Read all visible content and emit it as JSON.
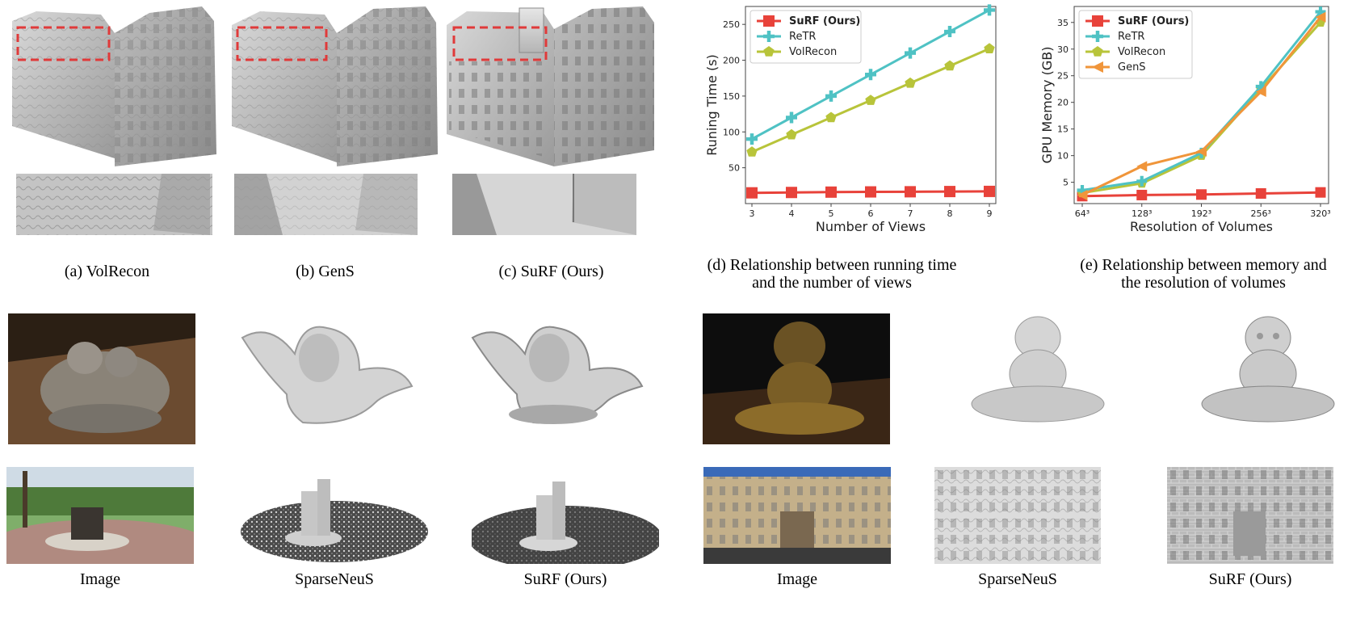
{
  "captions": {
    "a": "(a) VolRecon",
    "b": "(b) GenS",
    "c": "(c) SuRF (Ours)",
    "d1": "(d) Relationship between running time",
    "d2": "and the number of views",
    "e1": "(e) Relationship between memory and",
    "e2": "the resolution of volumes"
  },
  "bottom_labels": [
    "Image",
    "SparseNeuS",
    "SuRF (Ours)",
    "Image",
    "SparseNeuS",
    "SuRF (Ours)"
  ],
  "colors": {
    "surf": "#e8423a",
    "retr": "#4fc2c4",
    "volrecon": "#b8c43a",
    "gens": "#f0953a",
    "mesh_gray": "#c9c9c9",
    "highlight_box": "#e03a3a"
  },
  "chart_data": [
    {
      "type": "line",
      "xlabel": "Number of Views",
      "ylabel": "Runing Time (s)",
      "x": [
        3,
        4,
        5,
        6,
        7,
        8,
        9
      ],
      "x_tick_labels": [
        "3",
        "4",
        "5",
        "6",
        "7",
        "8",
        "9"
      ],
      "ylim": [
        0,
        275
      ],
      "y_ticks": [
        50,
        100,
        150,
        200,
        250
      ],
      "y_tick_labels": [
        "50",
        "100",
        "150",
        "200",
        "250"
      ],
      "legend_position": "top-left",
      "grid": false,
      "series": [
        {
          "name": "SuRF (Ours)",
          "marker": "square",
          "color": "#e8423a",
          "values": [
            15,
            15.5,
            16,
            16.3,
            16.5,
            16.8,
            17
          ]
        },
        {
          "name": "ReTR",
          "marker": "plus",
          "color": "#4fc2c4",
          "values": [
            90,
            120,
            150,
            180,
            210,
            240,
            270
          ]
        },
        {
          "name": "VolRecon",
          "marker": "pentagon",
          "color": "#b8c43a",
          "values": [
            72,
            96,
            120,
            144,
            168,
            192,
            216
          ]
        }
      ]
    },
    {
      "type": "line",
      "xlabel": "Resolution of Volumes",
      "ylabel": "GPU Memory (GB)",
      "x": [
        64,
        128,
        192,
        256,
        320
      ],
      "x_tick_labels": [
        "64³",
        "128³",
        "192³",
        "256³",
        "320³"
      ],
      "ylim": [
        1,
        38
      ],
      "y_ticks": [
        5,
        10,
        15,
        20,
        25,
        30,
        35
      ],
      "y_tick_labels": [
        "5",
        "10",
        "15",
        "20",
        "25",
        "30",
        "35"
      ],
      "legend_position": "top-left",
      "grid": false,
      "series": [
        {
          "name": "SuRF (Ours)",
          "marker": "square",
          "color": "#e8423a",
          "values": [
            2.4,
            2.6,
            2.7,
            2.9,
            3.1
          ]
        },
        {
          "name": "ReTR",
          "marker": "plus",
          "color": "#4fc2c4",
          "values": [
            3.5,
            5.2,
            10.5,
            23,
            37
          ]
        },
        {
          "name": "VolRecon",
          "marker": "pentagon",
          "color": "#b8c43a",
          "values": [
            3,
            4.8,
            10,
            22.5,
            35
          ]
        },
        {
          "name": "GenS",
          "marker": "triangle-left",
          "color": "#f0953a",
          "values": [
            2.6,
            8,
            10.8,
            22,
            36
          ]
        }
      ]
    }
  ]
}
